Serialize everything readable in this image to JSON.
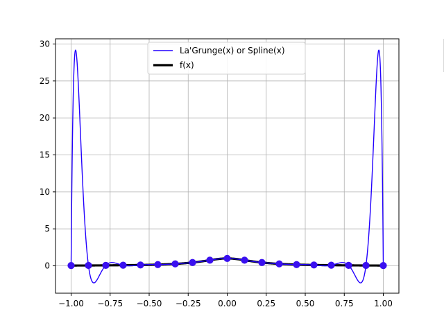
{
  "chart_data": {
    "type": "line",
    "title": "",
    "xlabel": "",
    "ylabel": "",
    "xlim": [
      -1.1,
      1.1
    ],
    "ylim": [
      -3.7,
      30.7
    ],
    "grid": true,
    "legend_location": "upper center",
    "xticks": [
      -1.0,
      -0.75,
      -0.5,
      -0.25,
      0.0,
      0.25,
      0.5,
      0.75,
      1.0
    ],
    "xtick_labels": [
      "−1.00",
      "−0.75",
      "−0.50",
      "−0.25",
      "0.00",
      "0.25",
      "0.50",
      "0.75",
      "1.00"
    ],
    "yticks": [
      0,
      5,
      10,
      15,
      20,
      25,
      30
    ],
    "ytick_labels": [
      "0",
      "5",
      "10",
      "15",
      "20",
      "25",
      "30"
    ],
    "colors": {
      "interp": "#2200ff",
      "exact": "#000000",
      "markers": "#3a10f0",
      "grid": "#b0b0b0",
      "axes": "#000000"
    },
    "series": [
      {
        "name": "La'Grunge(x) or Spline(x)",
        "kind": "lagrange-interpolant",
        "node_count": 19,
        "x_range": [
          -1.0,
          1.0
        ]
      },
      {
        "name": "f(x)",
        "kind": "runge-function",
        "formula": "1/(1+25x^2)",
        "x_range": [
          -1.0,
          1.0
        ]
      }
    ],
    "nodes": {
      "x": [
        -1.0,
        -0.8889,
        -0.7778,
        -0.6667,
        -0.5556,
        -0.4444,
        -0.3333,
        -0.2222,
        -0.1111,
        0.0,
        0.1111,
        0.2222,
        0.3333,
        0.4444,
        0.5556,
        0.6667,
        0.7778,
        0.8889,
        1.0
      ],
      "y": [
        0.0385,
        0.0482,
        0.062,
        0.0826,
        0.1147,
        0.1684,
        0.2647,
        0.4475,
        0.7642,
        1.0,
        0.7642,
        0.4475,
        0.2647,
        0.1684,
        0.1147,
        0.0826,
        0.062,
        0.0482,
        0.0385
      ]
    }
  }
}
